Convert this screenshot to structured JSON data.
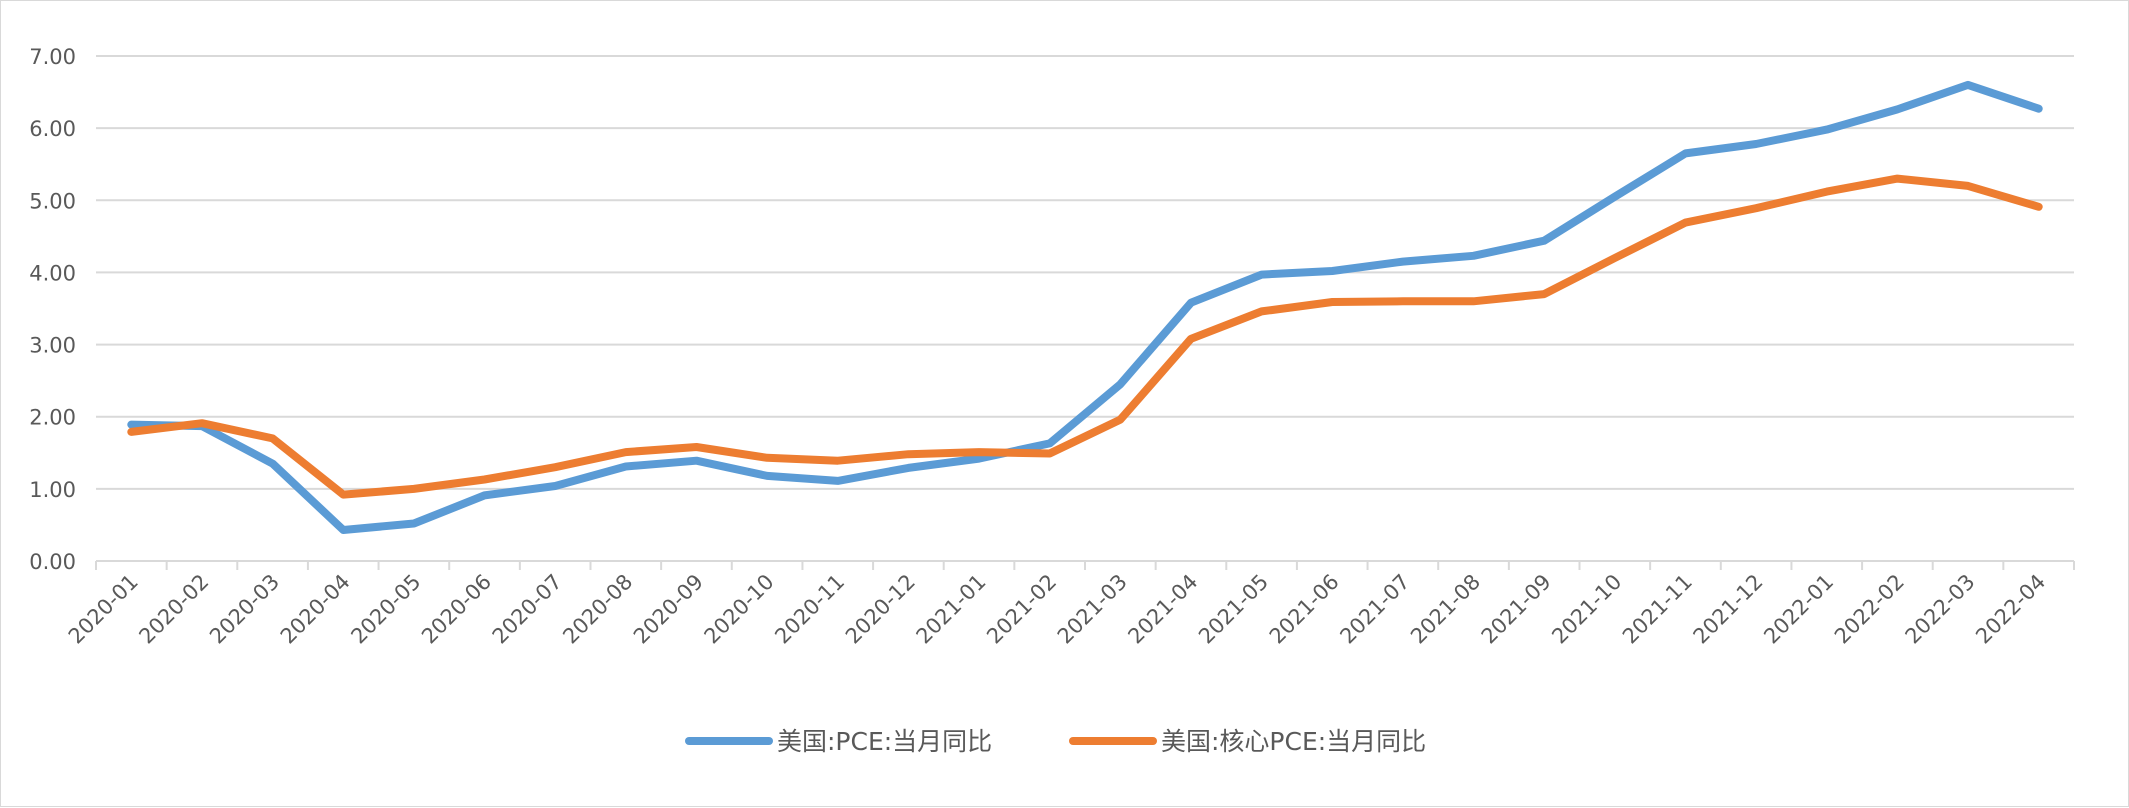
{
  "chart_data": {
    "type": "line",
    "title": "",
    "xlabel": "",
    "ylabel": "",
    "ylim": [
      0,
      7
    ],
    "yticks": [
      "0.00",
      "1.00",
      "2.00",
      "3.00",
      "4.00",
      "5.00",
      "6.00",
      "7.00"
    ],
    "grid": true,
    "legend_position": "bottom",
    "categories": [
      "2020-01",
      "2020-02",
      "2020-03",
      "2020-04",
      "2020-05",
      "2020-06",
      "2020-07",
      "2020-08",
      "2020-09",
      "2020-10",
      "2020-11",
      "2020-12",
      "2021-01",
      "2021-02",
      "2021-03",
      "2021-04",
      "2021-05",
      "2021-06",
      "2021-07",
      "2021-08",
      "2021-09",
      "2021-10",
      "2021-11",
      "2021-12",
      "2022-01",
      "2022-02",
      "2022-03",
      "2022-04"
    ],
    "series": [
      {
        "name": "美国:PCE:当月同比",
        "color": "#5b9bd5",
        "values": [
          1.89,
          1.87,
          1.35,
          0.43,
          0.52,
          0.91,
          1.04,
          1.31,
          1.39,
          1.18,
          1.11,
          1.29,
          1.42,
          1.63,
          2.45,
          3.58,
          3.97,
          4.02,
          4.15,
          4.23,
          4.44,
          5.05,
          5.65,
          5.78,
          5.98,
          6.26,
          6.6,
          6.27
        ]
      },
      {
        "name": "美国:核心PCE:当月同比",
        "color": "#ed7d31",
        "values": [
          1.79,
          1.91,
          1.7,
          0.92,
          1.0,
          1.13,
          1.3,
          1.51,
          1.58,
          1.43,
          1.39,
          1.48,
          1.51,
          1.49,
          1.96,
          3.08,
          3.46,
          3.59,
          3.6,
          3.6,
          3.7,
          4.2,
          4.69,
          4.89,
          5.12,
          5.3,
          5.2,
          4.91
        ]
      }
    ]
  }
}
